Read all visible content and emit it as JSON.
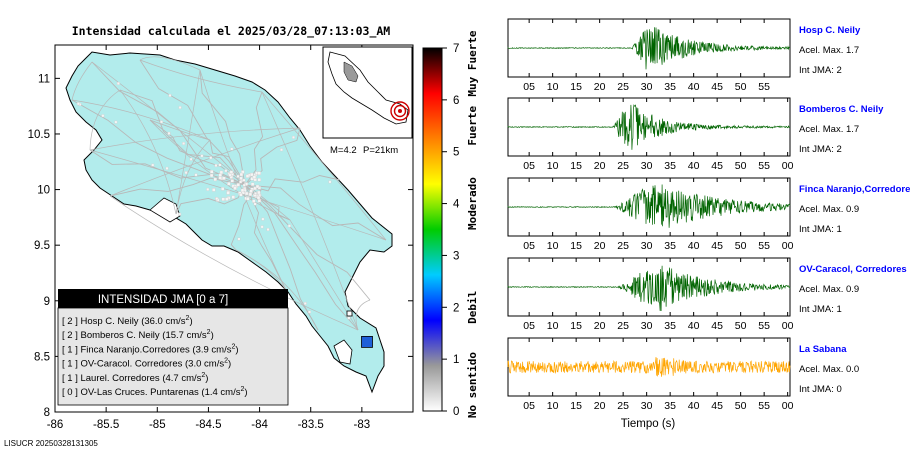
{
  "title": "Intensidad calculada el 2025/03/28_07:13:03_AM",
  "footer": "LISUCR 20250328131305",
  "event": {
    "magnitude_label": "M=4.2",
    "depth_label": "P=21km"
  },
  "colors": {
    "land": "#b2ecec",
    "road": "#b8b8b8",
    "border": "#000000",
    "waveform_station": "#006400",
    "waveform_reference": "#ffa500",
    "station_name": "#0000ff",
    "epicenter": "#cc0000",
    "marker": "#1e5fd8"
  },
  "colorbar": {
    "ticks": [
      "0",
      "1",
      "2",
      "3",
      "4",
      "5",
      "6",
      "7"
    ],
    "labels": [
      {
        "text": "No sentido",
        "center": 0.5
      },
      {
        "text": "Debil",
        "center": 2
      },
      {
        "text": "Moderado",
        "center": 4
      },
      {
        "text": "Fuerte",
        "center": 5.5
      },
      {
        "text": "Muy Fuerte",
        "center": 6.7
      }
    ],
    "stops": [
      "#ffffff",
      "#999999",
      "#0000ff",
      "#00ccff",
      "#00cc00",
      "#ffff00",
      "#ff8000",
      "#ff0000",
      "#000000"
    ]
  },
  "legend": {
    "title": "INTENSIDAD JMA [0 a 7]",
    "entries": [
      {
        "level": "[ 2 ]",
        "name": "Hosp C. Neily",
        "value": "(36.0 cm/s",
        "unit_sup": "2",
        ",": ""
      },
      {
        "level": "[ 2 ]",
        "name": "Bomberos C. Neily",
        "value": "(15.7 cm/s",
        "unit_sup": "2"
      },
      {
        "level": "[ 1 ]",
        "name": "Finca Naranjo.Corredores",
        "value": "(3.9 cm/s",
        "unit_sup": "2"
      },
      {
        "level": "[ 1 ]",
        "name": "OV-Caracol. Corredores",
        "value": "(3.0 cm/s",
        "unit_sup": "2"
      },
      {
        "level": "[ 1 ]",
        "name": "Laurel. Corredores",
        "value": "(4.7 cm/s",
        "unit_sup": "2"
      },
      {
        "level": "[ 0 ]",
        "name": "OV-Las Cruces. Puntarenas",
        "value": "(1.4 cm/s",
        "unit_sup": "2"
      }
    ]
  },
  "chart_data": [
    {
      "type": "map",
      "x_ticks": [
        "-86",
        "-85.5",
        "-85",
        "-84.5",
        "-84",
        "-83.5",
        "-83"
      ],
      "y_ticks": [
        "8",
        "8.5",
        "9",
        "9.5",
        "10",
        "10.5",
        "11"
      ],
      "xlim": [
        -86,
        -82.5
      ],
      "ylim": [
        8,
        11.3
      ],
      "stations": [
        {
          "name": "Hosp C. Neily",
          "lon": -82.95,
          "lat": 8.63,
          "intensity": 2
        }
      ]
    },
    {
      "type": "waveform",
      "xlabel": "Tiempo (s)",
      "panels": [
        {
          "station": "Hosp C. Neily",
          "acel": "Acel. Max. 1.7",
          "int": "Int JMA: 2",
          "ticks": [
            "05",
            "10",
            "15",
            "20",
            "25",
            "30",
            "35",
            "40",
            "45",
            "50",
            "55"
          ],
          "onset": 0.44,
          "peak": 0.5,
          "decay": 0.12,
          "color": "station"
        },
        {
          "station": "Bomberos C. Neily",
          "acel": "Acel. Max. 1.7",
          "int": "Int JMA: 2",
          "ticks": [
            "05",
            "10",
            "15",
            "20",
            "25",
            "30",
            "35",
            "40",
            "45",
            "50",
            "55",
            "00"
          ],
          "onset": 0.37,
          "peak": 0.43,
          "decay": 0.1,
          "color": "station"
        },
        {
          "station": "Finca Naranjo,Corredores",
          "acel": "Acel. Max. 0.9",
          "int": "Int JMA: 1",
          "ticks": [
            "05",
            "10",
            "15",
            "20",
            "25",
            "30",
            "35",
            "40",
            "45",
            "50",
            "55",
            "00"
          ],
          "onset": 0.38,
          "peak": 0.52,
          "decay": 0.2,
          "color": "station"
        },
        {
          "station": "OV-Caracol, Corredores",
          "acel": "Acel. Max. 0.9",
          "int": "Int JMA: 1",
          "ticks": [
            "05",
            "10",
            "15",
            "20",
            "25",
            "30",
            "35",
            "40",
            "45",
            "50",
            "55",
            "00"
          ],
          "onset": 0.39,
          "peak": 0.53,
          "decay": 0.15,
          "color": "station"
        },
        {
          "station": "La Sabana",
          "acel": "Acel. Max. 0.0",
          "int": "Int JMA: 0",
          "ticks": [
            "05",
            "10",
            "15",
            "20",
            "25",
            "30",
            "35",
            "40",
            "45",
            "50",
            "55",
            "00"
          ],
          "onset": 0.0,
          "peak": 0.55,
          "decay": 0.5,
          "color": "reference"
        }
      ]
    }
  ]
}
